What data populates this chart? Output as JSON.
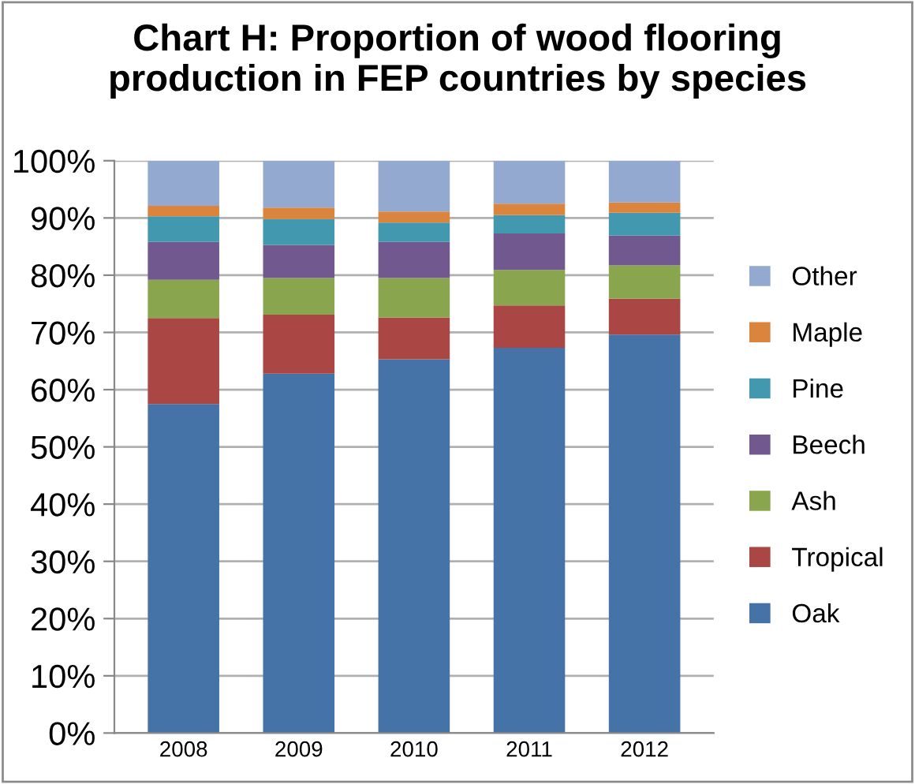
{
  "chart_data": {
    "type": "bar",
    "title": "Chart H: Proportion of wood flooring\nproduction in FEP countries by species",
    "categories": [
      "2008",
      "2009",
      "2010",
      "2011",
      "2012"
    ],
    "stacked": true,
    "series": [
      {
        "name": "Oak",
        "color": "#4572a7",
        "values": [
          57.5,
          62.8,
          65.3,
          67.3,
          69.6
        ]
      },
      {
        "name": "Tropical",
        "color": "#aa4643",
        "values": [
          15.0,
          10.3,
          7.3,
          7.4,
          6.3
        ]
      },
      {
        "name": "Ash",
        "color": "#89a54e",
        "values": [
          6.7,
          6.4,
          6.9,
          6.2,
          5.8
        ]
      },
      {
        "name": "Beech",
        "color": "#71588f",
        "values": [
          6.6,
          5.8,
          6.3,
          6.4,
          5.2
        ]
      },
      {
        "name": "Pine",
        "color": "#4198af",
        "values": [
          4.5,
          4.5,
          3.4,
          3.2,
          4.0
        ]
      },
      {
        "name": "Maple",
        "color": "#db843d",
        "values": [
          1.8,
          2.0,
          1.9,
          2.0,
          1.8
        ]
      },
      {
        "name": "Other",
        "color": "#93a9cf",
        "values": [
          7.9,
          8.2,
          8.9,
          7.5,
          7.3
        ]
      }
    ],
    "ylim": [
      0,
      100
    ],
    "yticks": [
      {
        "value": 0,
        "label": "0%"
      },
      {
        "value": 10,
        "label": "10%"
      },
      {
        "value": 20,
        "label": "20%"
      },
      {
        "value": 30,
        "label": "30%"
      },
      {
        "value": 40,
        "label": "40%"
      },
      {
        "value": 50,
        "label": "50%"
      },
      {
        "value": 60,
        "label": "60%"
      },
      {
        "value": 70,
        "label": "70%"
      },
      {
        "value": 80,
        "label": "80%"
      },
      {
        "value": 90,
        "label": "90%"
      },
      {
        "value": 100,
        "label": "100%"
      }
    ],
    "grid": "y",
    "legend": "right"
  }
}
